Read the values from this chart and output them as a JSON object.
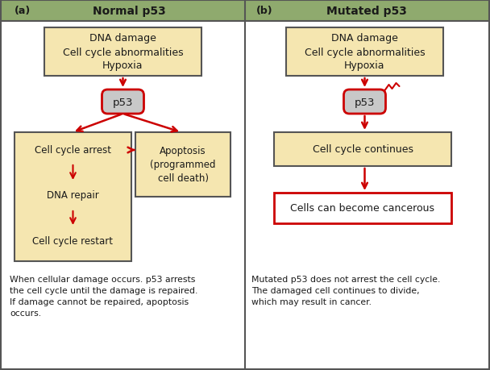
{
  "fig_width": 6.08,
  "fig_height": 4.6,
  "dpi": 100,
  "bg_color": "#ffffff",
  "header_bg": "#8faa6e",
  "box_fill_yellow": "#f5e6b0",
  "box_fill_gray": "#c8c8c8",
  "box_border_dark": "#555555",
  "box_border_red": "#cc0000",
  "arrow_color": "#cc0000",
  "text_color": "#1a1a1a",
  "header_text_color": "#1a1a1a",
  "outer_border": "#555555",
  "left_title": "Normal p53",
  "right_title": "Mutated p53",
  "left_label": "(a)",
  "right_label": "(b)",
  "left_caption": "When cellular damage occurs. p53 arrests\nthe cell cycle until the damage is repaired.\nIf damage cannot be repaired, apoptosis\noccurs.",
  "right_caption": "Mutated p53 does not arrest the cell cycle.\nThe damaged cell continues to divide,\nwhich may result in cancer.",
  "dna_damage_text": "DNA damage\nCell cycle abnormalities\nHypoxia",
  "p53_text": "p53",
  "cell_cycle_arrest_text": "Cell cycle arrest",
  "dna_repair_text": "DNA repair",
  "cell_cycle_restart_text": "Cell cycle restart",
  "apoptosis_text": "Apoptosis\n(programmed\ncell death)",
  "cell_cycle_continues_text": "Cell cycle continues",
  "cancerous_text": "Cells can become cancerous"
}
